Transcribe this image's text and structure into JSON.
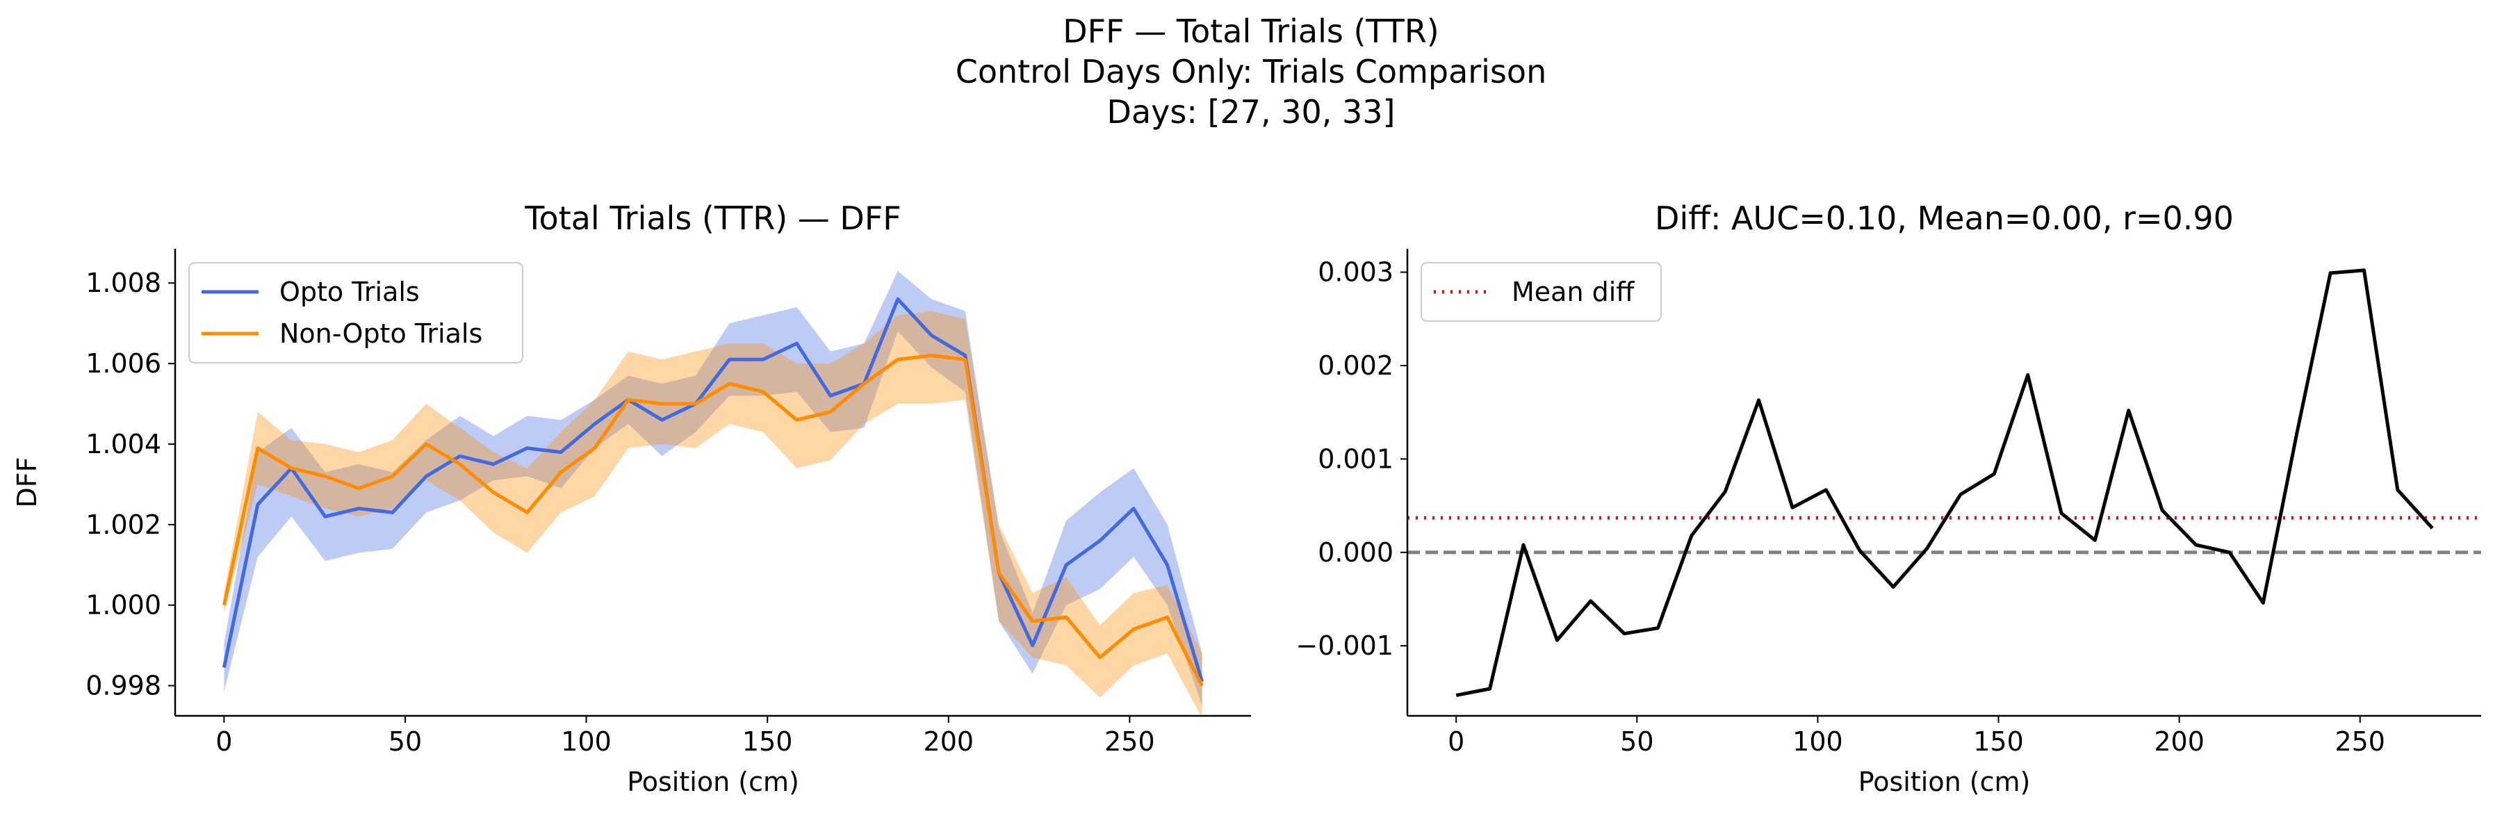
{
  "figure": {
    "suptitle_lines": [
      "DFF — Total Trials (TTR)",
      "Control Days Only: Trials Comparison",
      "Days: [27, 30, 33]"
    ]
  },
  "chart_data": [
    {
      "type": "line",
      "title": "Total Trials (TTR) — DFF",
      "xlabel": "Position (cm)",
      "ylabel": "DFF",
      "xlim": [
        -13.5,
        283.5
      ],
      "ylim": [
        0.99725,
        1.00885
      ],
      "xticks": [
        0,
        50,
        100,
        150,
        200,
        250
      ],
      "yticks": [
        0.998,
        1.0,
        1.002,
        1.004,
        1.006,
        1.008
      ],
      "ytick_labels": [
        "0.998",
        "1.000",
        "1.002",
        "1.004",
        "1.006",
        "1.008"
      ],
      "grid": false,
      "legend_position": "upper-left",
      "x": [
        0,
        9.3,
        18.6,
        27.9,
        37.2,
        46.5,
        55.8,
        65.1,
        74.4,
        83.7,
        93,
        102.3,
        111.6,
        120.9,
        130.2,
        139.5,
        148.8,
        158.1,
        167.4,
        176.7,
        186,
        195.3,
        204.6,
        213.9,
        223.2,
        232.5,
        241.8,
        251.1,
        260.4,
        270
      ],
      "series": [
        {
          "name": "Opto Trials",
          "color": "#4169E1",
          "values": [
            0.99845,
            1.0025,
            1.0034,
            1.0022,
            1.0024,
            1.0023,
            1.0032,
            1.0037,
            1.0035,
            1.0039,
            1.0038,
            1.0045,
            1.0051,
            1.0046,
            1.005,
            1.0061,
            1.0061,
            1.0065,
            1.0052,
            1.0055,
            1.0076,
            1.0067,
            1.0062,
            1.0008,
            0.999,
            1.001,
            1.0016,
            1.0024,
            1.001,
            0.9981
          ],
          "lower": [
            0.99785,
            1.0012,
            1.0022,
            1.0011,
            1.0013,
            1.0014,
            1.0023,
            1.0026,
            1.0031,
            1.0032,
            1.0029,
            1.0039,
            1.0045,
            1.0037,
            1.0043,
            1.0052,
            1.0052,
            1.0053,
            1.0043,
            1.0044,
            1.0068,
            1.0059,
            1.0053,
            0.9996,
            0.9983,
            1.0,
            1.0004,
            1.0012,
            1.0,
            0.9975
          ],
          "upper": [
            0.99905,
            1.0038,
            1.0044,
            1.0033,
            1.0035,
            1.0033,
            1.0041,
            1.0047,
            1.0042,
            1.0047,
            1.0046,
            1.0051,
            1.0057,
            1.0055,
            1.0057,
            1.007,
            1.0072,
            1.0074,
            1.0063,
            1.0065,
            1.0083,
            1.0076,
            1.0073,
            1.0019,
            0.9998,
            1.0021,
            1.0028,
            1.0034,
            1.002,
            0.9988
          ]
        },
        {
          "name": "Non-Opto Trials",
          "color": "#FF8C00",
          "values": [
            1.0,
            1.0039,
            1.0034,
            1.0032,
            1.0029,
            1.0032,
            1.004,
            1.0035,
            1.0028,
            1.0023,
            1.0033,
            1.0039,
            1.0051,
            1.005,
            1.005,
            1.0055,
            1.0053,
            1.0046,
            1.0048,
            1.0055,
            1.0061,
            1.0062,
            1.0061,
            1.0008,
            0.9996,
            0.9997,
            0.9987,
            0.9994,
            0.9997,
            0.998
          ],
          "lower": [
            0.9998,
            1.003,
            1.0027,
            1.0024,
            1.0022,
            1.0024,
            1.0031,
            1.0026,
            1.0018,
            1.0013,
            1.0023,
            1.0027,
            1.0039,
            1.004,
            1.0039,
            1.0045,
            1.0043,
            1.0034,
            1.0036,
            1.0045,
            1.005,
            1.005,
            1.0051,
            0.9996,
            0.9987,
            0.9985,
            0.9977,
            0.9985,
            0.9988,
            0.9972
          ],
          "upper": [
            1.0003,
            1.0048,
            1.0041,
            1.004,
            1.0038,
            1.0041,
            1.005,
            1.0044,
            1.0038,
            1.0034,
            1.0043,
            1.0051,
            1.0063,
            1.0061,
            1.0063,
            1.0065,
            1.0065,
            1.006,
            1.006,
            1.0065,
            1.0072,
            1.0073,
            1.0071,
            1.002,
            1.0003,
            1.0007,
            0.9995,
            1.0003,
            1.0005,
            0.9988
          ]
        }
      ]
    },
    {
      "type": "line",
      "title": "Diff: AUC=0.10, Mean=0.00, r=0.90",
      "xlabel": "Position (cm)",
      "ylabel": "",
      "xlim": [
        -13.5,
        283.5
      ],
      "ylim": [
        -0.00175,
        0.00325
      ],
      "xticks": [
        0,
        50,
        100,
        150,
        200,
        250
      ],
      "yticks": [
        -0.001,
        0.0,
        0.001,
        0.002,
        0.003
      ],
      "ytick_labels": [
        "−0.001",
        "0.000",
        "0.001",
        "0.002",
        "0.003"
      ],
      "grid": false,
      "legend_position": "upper-left",
      "x": [
        0,
        9.3,
        18.6,
        27.9,
        37.2,
        46.5,
        55.8,
        65.1,
        74.4,
        83.7,
        93,
        102.3,
        111.6,
        120.9,
        130.2,
        139.5,
        148.8,
        158.1,
        167.4,
        176.7,
        186,
        195.3,
        204.6,
        213.9,
        223.2,
        232.5,
        241.8,
        251.1,
        260.4,
        270
      ],
      "series": [
        {
          "color": "#000000",
          "values": [
            -0.00153,
            -0.00146,
            8e-05,
            -0.00094,
            -0.00052,
            -0.00087,
            -0.00081,
            0.00018,
            0.00065,
            0.00163,
            0.00048,
            0.00067,
            2e-05,
            -0.00037,
            4e-05,
            0.00062,
            0.00084,
            0.0019,
            0.00042,
            0.00013,
            0.00152,
            0.00045,
            8e-05,
            0.0,
            -0.00054,
            0.00127,
            0.00299,
            0.00302,
            0.00067,
            0.00026
          ]
        }
      ],
      "reference_lines": [
        {
          "name": "Mean diff",
          "y": 0.00037,
          "color": "#FF0000",
          "style": "dotted"
        },
        {
          "y": 0.0,
          "color": "#808080",
          "style": "dashed"
        }
      ]
    }
  ]
}
